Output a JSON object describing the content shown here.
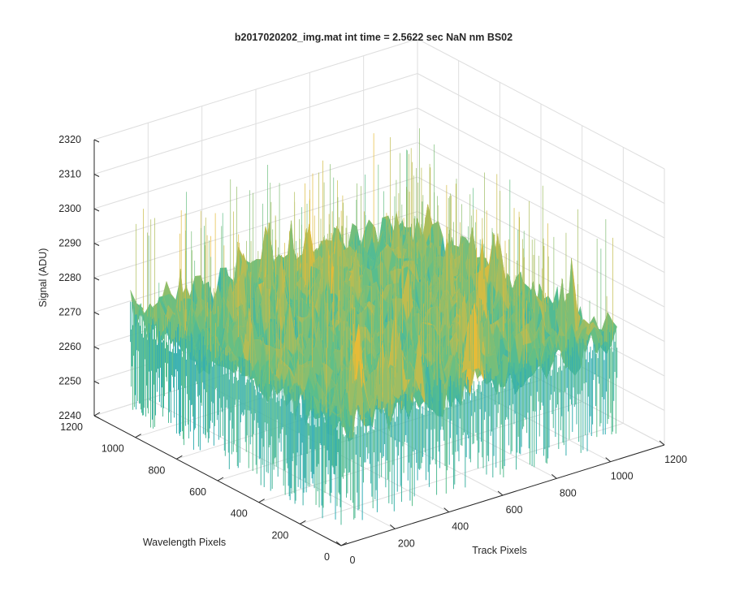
{
  "chart_data": {
    "type": "surface",
    "title": "b2017020202_img.mat int time = 2.5622 sec  NaN nm BS02",
    "xlabel": "Track Pixels",
    "ylabel": "Wavelength Pixels",
    "zlabel": "Signal (ADU)",
    "xlim": [
      0,
      1200
    ],
    "ylim": [
      0,
      1200
    ],
    "zlim": [
      2240,
      2320
    ],
    "x_ticks": [
      0,
      200,
      400,
      600,
      800,
      1000,
      1200
    ],
    "y_ticks": [
      0,
      200,
      400,
      600,
      800,
      1000,
      1200
    ],
    "z_ticks": [
      2240,
      2250,
      2260,
      2270,
      2280,
      2290,
      2300,
      2310,
      2320
    ],
    "x_tick_labels": [
      "0",
      "200",
      "400",
      "600",
      "800",
      "1000",
      "1200"
    ],
    "y_tick_labels": [
      "0",
      "200",
      "400",
      "600",
      "800",
      "1000",
      "1200"
    ],
    "z_tick_labels": [
      "2240",
      "2250",
      "2260",
      "2270",
      "2280",
      "2290",
      "2300",
      "2310",
      "2320"
    ],
    "data_extent": {
      "x": [
        0,
        1024
      ],
      "y": [
        0,
        1024
      ]
    },
    "surface_mean": 2275,
    "surface_noise_range": [
      2245,
      2310
    ],
    "grid": true,
    "colormap": "parula",
    "colors": {
      "low": "#1ea5c8",
      "mid": "#5cbf8a",
      "high": "#e6bb38",
      "axis": "#262626",
      "grid": "#dedede"
    }
  }
}
